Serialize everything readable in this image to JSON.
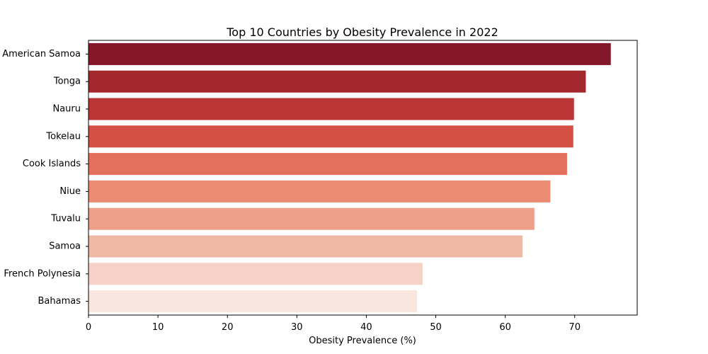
{
  "chart_data": {
    "type": "bar",
    "orientation": "horizontal",
    "title": "Top 10 Countries by Obesity Prevalence in 2022",
    "xlabel": "Obesity Prevalence (%)",
    "ylabel": "",
    "categories": [
      "American Samoa",
      "Tonga",
      "Nauru",
      "Tokelau",
      "Cook Islands",
      "Niue",
      "Tuvalu",
      "Samoa",
      "French Polynesia",
      "Bahamas"
    ],
    "values": [
      75.2,
      71.6,
      69.9,
      69.8,
      68.9,
      66.5,
      64.2,
      62.5,
      48.1,
      47.3
    ],
    "colors": [
      "#84182a",
      "#a3282e",
      "#bb3436",
      "#d44f44",
      "#e3705a",
      "#eb8b72",
      "#eca089",
      "#f0b9a5",
      "#f5d2c5",
      "#f9e6de"
    ],
    "xlim": [
      0,
      79
    ],
    "xticks": [
      0,
      10,
      20,
      30,
      40,
      50,
      60,
      70
    ],
    "grid": false,
    "legend": "none"
  }
}
